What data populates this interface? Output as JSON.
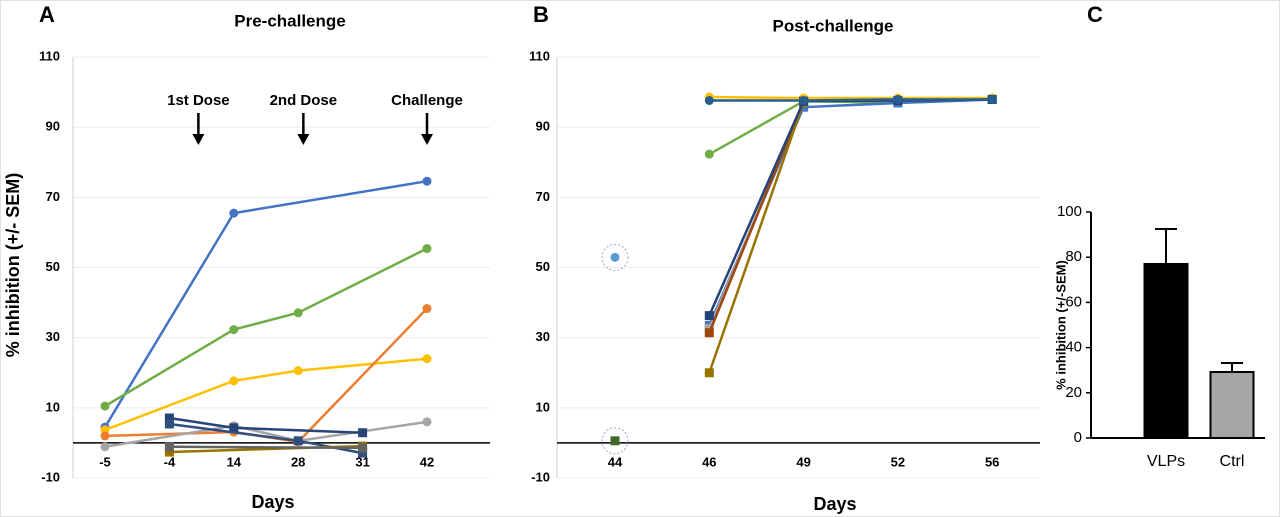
{
  "chart_data": [
    {
      "type": "line",
      "panel": "A",
      "title": "Pre-challenge",
      "x_label": "Days",
      "y_label": "% inhibition (+/- SEM)",
      "categories": [
        "-5",
        "-4",
        "14",
        "28",
        "31",
        "42"
      ],
      "ylim": [
        -10,
        110
      ],
      "yticks": [
        -10,
        10,
        30,
        50,
        70,
        90,
        110
      ],
      "grid": true,
      "annotations": [
        "1st Dose",
        "2nd Dose",
        "Challenge"
      ],
      "series": [
        {
          "color": "#4472c4",
          "marker": "circle",
          "x": [
            "-5",
            "14",
            "42"
          ],
          "values": [
            4.5,
            65.5,
            74.6
          ]
        },
        {
          "color": "#70ad47",
          "marker": "circle",
          "x": [
            "-5",
            "14",
            "28",
            "42"
          ],
          "values": [
            10.5,
            32.3,
            37.1,
            55.4
          ]
        },
        {
          "color": "#ffc000",
          "marker": "circle",
          "x": [
            "-5",
            "14",
            "28",
            "42"
          ],
          "values": [
            3.7,
            17.7,
            20.6,
            24
          ]
        },
        {
          "color": "#ed7d31",
          "marker": "circle",
          "x": [
            "-5",
            "14",
            "28",
            "42"
          ],
          "values": [
            2,
            3.1,
            0.3,
            38.3
          ]
        },
        {
          "color": "#a5a5a5",
          "marker": "circle",
          "x": [
            "-5",
            "14",
            "28",
            "42"
          ],
          "values": [
            -1.1,
            4.9,
            0.6,
            6
          ]
        },
        {
          "color": "#264478",
          "marker": "square",
          "x": [
            "-4",
            "14",
            "31"
          ],
          "values": [
            7.1,
            4.3,
            2.9
          ]
        },
        {
          "color": "#2f4f7f",
          "marker": "square",
          "x": [
            "-4",
            "28",
            "31"
          ],
          "values": [
            5.4,
            0.6,
            -2.9
          ]
        },
        {
          "color": "#997300",
          "marker": "square",
          "x": [
            "-4",
            "31"
          ],
          "values": [
            -2.6,
            -0.9
          ]
        },
        {
          "color": "#636363",
          "marker": "square",
          "x": [
            "-4",
            "31"
          ],
          "values": [
            -1.1,
            -1.4
          ]
        }
      ]
    },
    {
      "type": "line",
      "panel": "B",
      "title": "Post-challenge",
      "x_label": "Days",
      "categories": [
        "44",
        "46",
        "49",
        "52",
        "56"
      ],
      "ylim": [
        -10,
        110
      ],
      "yticks": [
        -10,
        10,
        30,
        50,
        70,
        90,
        110
      ],
      "grid": true,
      "series": [
        {
          "color": "#5b9bd5",
          "marker": "circle",
          "highlight": true,
          "x": [
            "44"
          ],
          "values": [
            52.9
          ]
        },
        {
          "color": "#43682b",
          "marker": "square",
          "highlight": true,
          "x": [
            "44"
          ],
          "values": [
            0.6
          ]
        },
        {
          "color": "#ffc000",
          "marker": "circle",
          "x": [
            "46",
            "49",
            "52",
            "56"
          ],
          "values": [
            98.6,
            98.3,
            98.3,
            98.3
          ]
        },
        {
          "color": "#70ad47",
          "marker": "circle",
          "x": [
            "46",
            "49",
            "52",
            "56"
          ],
          "values": [
            82.3,
            97.4,
            97,
            97.9
          ]
        },
        {
          "color": "#4472c4",
          "marker": "square",
          "x": [
            "46",
            "49",
            "52",
            "56"
          ],
          "values": [
            33.5,
            95.7,
            96.9,
            97.9
          ]
        },
        {
          "color": "#a5a5a5",
          "marker": "square",
          "x": [
            "46",
            "49"
          ],
          "values": [
            32.6,
            97.1
          ]
        },
        {
          "color": "#9e480e",
          "marker": "square",
          "x": [
            "46",
            "49"
          ],
          "values": [
            31.4,
            97.4
          ]
        },
        {
          "color": "#997300",
          "marker": "square",
          "x": [
            "46",
            "49"
          ],
          "values": [
            20,
            97.1
          ]
        },
        {
          "color": "#264478",
          "marker": "square",
          "x": [
            "46",
            "49",
            "52",
            "56"
          ],
          "values": [
            36.3,
            97.4,
            97.6,
            97.9
          ]
        },
        {
          "color": "#255e91",
          "marker": "circle",
          "x": [
            "46",
            "49",
            "52",
            "56"
          ],
          "values": [
            97.6,
            97.6,
            97.9,
            97.9
          ]
        }
      ]
    },
    {
      "type": "bar",
      "panel": "C",
      "y_label": "% inhibition (+/-SEM)",
      "categories": [
        "VLPs",
        "Ctrl"
      ],
      "values": [
        77,
        29.2
      ],
      "errors": [
        15.5,
        4
      ],
      "colors": [
        "#000000",
        "#a6a6a6"
      ],
      "ylim": [
        0,
        100
      ],
      "yticks": [
        0,
        20,
        40,
        60,
        80,
        100
      ]
    }
  ]
}
